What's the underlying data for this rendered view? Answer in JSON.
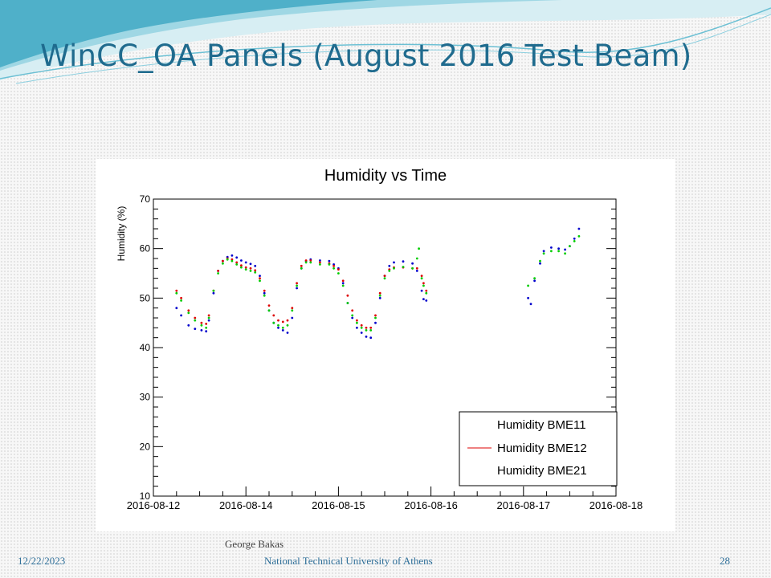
{
  "slide": {
    "title": "WinCC_OA Panels (August 2016 Test Beam)",
    "footer_date": "12/22/2023",
    "footer_author": "George Bakas",
    "footer_institution": "National Technical University of Athens",
    "footer_page": "28",
    "title_color": "#1f6b8e",
    "banner_colors": [
      "#4fb0c9",
      "#9fd7e4",
      "#d7eef3"
    ]
  },
  "chart_data": {
    "type": "scatter",
    "title": "Humidity vs Time",
    "xlabel": "",
    "ylabel": "Humidity (%)",
    "x_tick_labels": [
      "2016-08-12",
      "2016-08-14",
      "2016-08-15",
      "2016-08-16",
      "2016-08-17",
      "2016-08-18"
    ],
    "x_ticks_day": [
      0,
      1,
      2,
      3,
      4,
      5
    ],
    "xlim": [
      0,
      5
    ],
    "ylim": [
      10,
      70
    ],
    "y_ticks": [
      10,
      20,
      30,
      40,
      50,
      60,
      70
    ],
    "grid": false,
    "legend_position": "bottom-right",
    "legend": [
      "Humidity BME11",
      "Humidity BME12",
      "Humidity BME21"
    ],
    "series": [
      {
        "name": "Humidity BME11",
        "color": "#0000cc",
        "points": [
          [
            0.25,
            48.0
          ],
          [
            0.3,
            46.5
          ],
          [
            0.38,
            44.5
          ],
          [
            0.45,
            43.8
          ],
          [
            0.52,
            43.5
          ],
          [
            0.57,
            43.3
          ],
          [
            0.6,
            45.5
          ],
          [
            0.65,
            51.0
          ],
          [
            0.7,
            55.5
          ],
          [
            0.75,
            57.5
          ],
          [
            0.8,
            58.3
          ],
          [
            0.85,
            58.6
          ],
          [
            0.9,
            58.2
          ],
          [
            0.95,
            57.6
          ],
          [
            1.0,
            57.2
          ],
          [
            1.05,
            56.9
          ],
          [
            1.1,
            56.5
          ],
          [
            1.15,
            54.5
          ],
          [
            1.2,
            51.0
          ],
          [
            1.25,
            47.5
          ],
          [
            1.3,
            45.0
          ],
          [
            1.35,
            44.0
          ],
          [
            1.4,
            43.5
          ],
          [
            1.45,
            43.0
          ],
          [
            1.5,
            46.0
          ],
          [
            1.55,
            52.0
          ],
          [
            1.6,
            56.0
          ],
          [
            1.65,
            57.5
          ],
          [
            1.7,
            57.8
          ],
          [
            1.8,
            57.6
          ],
          [
            1.9,
            57.5
          ],
          [
            1.95,
            56.8
          ],
          [
            2.0,
            56.0
          ],
          [
            2.05,
            53.0
          ],
          [
            2.1,
            49.0
          ],
          [
            2.15,
            46.0
          ],
          [
            2.2,
            44.0
          ],
          [
            2.25,
            43.0
          ],
          [
            2.3,
            42.2
          ],
          [
            2.35,
            42.0
          ],
          [
            2.4,
            45.0
          ],
          [
            2.45,
            50.0
          ],
          [
            2.5,
            54.5
          ],
          [
            2.55,
            56.5
          ],
          [
            2.6,
            57.2
          ],
          [
            2.7,
            57.4
          ],
          [
            2.8,
            57.0
          ],
          [
            2.85,
            55.5
          ],
          [
            2.9,
            51.5
          ],
          [
            2.92,
            49.8
          ],
          [
            2.95,
            49.5
          ],
          [
            4.05,
            50.0
          ],
          [
            4.08,
            48.8
          ],
          [
            4.12,
            53.5
          ],
          [
            4.18,
            57.0
          ],
          [
            4.22,
            59.5
          ],
          [
            4.3,
            60.2
          ],
          [
            4.38,
            60.0
          ],
          [
            4.45,
            59.8
          ],
          [
            4.5,
            60.5
          ],
          [
            4.55,
            62.0
          ],
          [
            4.6,
            64.0
          ]
        ]
      },
      {
        "name": "Humidity BME12",
        "color": "#dd0000",
        "points": [
          [
            0.25,
            51.5
          ],
          [
            0.3,
            50.0
          ],
          [
            0.38,
            47.5
          ],
          [
            0.45,
            46.0
          ],
          [
            0.52,
            45.0
          ],
          [
            0.57,
            44.8
          ],
          [
            0.6,
            46.5
          ],
          [
            0.65,
            51.5
          ],
          [
            0.7,
            55.5
          ],
          [
            0.75,
            57.5
          ],
          [
            0.8,
            58.0
          ],
          [
            0.85,
            57.8
          ],
          [
            0.9,
            57.2
          ],
          [
            0.95,
            56.6
          ],
          [
            1.0,
            56.2
          ],
          [
            1.05,
            56.0
          ],
          [
            1.1,
            55.6
          ],
          [
            1.15,
            54.0
          ],
          [
            1.2,
            51.5
          ],
          [
            1.25,
            48.5
          ],
          [
            1.3,
            46.5
          ],
          [
            1.35,
            45.5
          ],
          [
            1.4,
            45.2
          ],
          [
            1.45,
            45.5
          ],
          [
            1.5,
            48.0
          ],
          [
            1.55,
            53.0
          ],
          [
            1.6,
            56.5
          ],
          [
            1.65,
            57.6
          ],
          [
            1.7,
            57.6
          ],
          [
            1.8,
            57.2
          ],
          [
            1.9,
            57.0
          ],
          [
            1.95,
            56.5
          ],
          [
            2.0,
            55.8
          ],
          [
            2.05,
            53.5
          ],
          [
            2.1,
            50.5
          ],
          [
            2.15,
            47.5
          ],
          [
            2.2,
            45.5
          ],
          [
            2.25,
            44.5
          ],
          [
            2.3,
            44.0
          ],
          [
            2.35,
            44.0
          ],
          [
            2.4,
            46.5
          ],
          [
            2.45,
            51.0
          ],
          [
            2.5,
            54.5
          ],
          [
            2.55,
            55.8
          ],
          [
            2.6,
            56.2
          ],
          [
            2.7,
            56.2
          ],
          [
            2.8,
            56.0
          ],
          [
            2.85,
            56.0
          ],
          [
            2.9,
            54.5
          ],
          [
            2.92,
            53.0
          ],
          [
            2.95,
            51.5
          ]
        ]
      },
      {
        "name": "Humidity BME21",
        "color": "#00cc00",
        "points": [
          [
            0.25,
            51.0
          ],
          [
            0.3,
            49.5
          ],
          [
            0.38,
            47.0
          ],
          [
            0.45,
            45.5
          ],
          [
            0.52,
            44.5
          ],
          [
            0.57,
            44.0
          ],
          [
            0.6,
            46.0
          ],
          [
            0.65,
            51.5
          ],
          [
            0.7,
            55.0
          ],
          [
            0.75,
            57.0
          ],
          [
            0.8,
            57.8
          ],
          [
            0.85,
            57.5
          ],
          [
            0.9,
            56.8
          ],
          [
            0.95,
            56.2
          ],
          [
            1.0,
            55.8
          ],
          [
            1.05,
            55.5
          ],
          [
            1.1,
            55.2
          ],
          [
            1.15,
            53.5
          ],
          [
            1.2,
            50.5
          ],
          [
            1.25,
            47.5
          ],
          [
            1.3,
            45.0
          ],
          [
            1.35,
            44.5
          ],
          [
            1.4,
            44.0
          ],
          [
            1.45,
            44.5
          ],
          [
            1.5,
            47.5
          ],
          [
            1.55,
            52.5
          ],
          [
            1.6,
            56.0
          ],
          [
            1.65,
            57.2
          ],
          [
            1.7,
            57.2
          ],
          [
            1.8,
            56.8
          ],
          [
            1.9,
            56.8
          ],
          [
            1.95,
            56.0
          ],
          [
            2.0,
            55.0
          ],
          [
            2.05,
            52.5
          ],
          [
            2.1,
            49.0
          ],
          [
            2.15,
            46.5
          ],
          [
            2.2,
            45.0
          ],
          [
            2.25,
            44.0
          ],
          [
            2.3,
            43.5
          ],
          [
            2.35,
            43.5
          ],
          [
            2.4,
            46.0
          ],
          [
            2.45,
            50.5
          ],
          [
            2.5,
            54.0
          ],
          [
            2.55,
            55.5
          ],
          [
            2.6,
            56.0
          ],
          [
            2.7,
            56.3
          ],
          [
            2.8,
            56.0
          ],
          [
            2.85,
            58.0
          ],
          [
            2.87,
            60.0
          ],
          [
            2.9,
            54.0
          ],
          [
            2.92,
            52.5
          ],
          [
            2.95,
            51.0
          ],
          [
            4.05,
            52.5
          ],
          [
            4.12,
            54.0
          ],
          [
            4.18,
            57.5
          ],
          [
            4.22,
            59.0
          ],
          [
            4.3,
            59.5
          ],
          [
            4.38,
            59.5
          ],
          [
            4.45,
            59.0
          ],
          [
            4.5,
            60.5
          ],
          [
            4.55,
            61.5
          ],
          [
            4.6,
            62.5
          ]
        ]
      }
    ]
  }
}
